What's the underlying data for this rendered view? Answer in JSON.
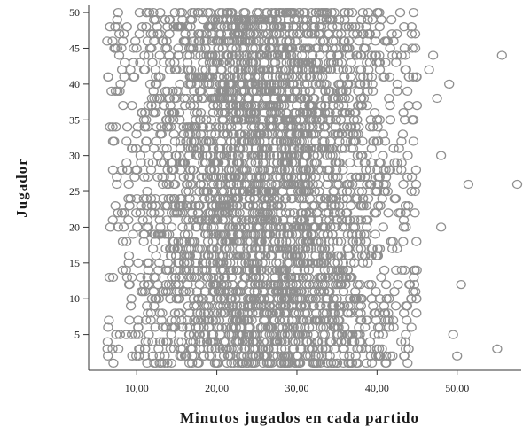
{
  "chart_data": {
    "type": "scatter",
    "title": "",
    "xlabel": "Minutos jugados en cada partido",
    "ylabel": "Jugador",
    "xlim": [
      4,
      58
    ],
    "ylim": [
      0,
      51
    ],
    "x_ticks": [
      10,
      20,
      30,
      40,
      50
    ],
    "x_tick_labels": [
      "10,00",
      "20,00",
      "30,00",
      "40,00",
      "50,00"
    ],
    "y_ticks": [
      5,
      10,
      15,
      20,
      25,
      30,
      35,
      40,
      45,
      50
    ],
    "y_tick_labels": [
      "5",
      "10",
      "15",
      "20",
      "25",
      "30",
      "35",
      "40",
      "45",
      "50"
    ],
    "grid": false,
    "legend": false,
    "marker": "open-circle",
    "marker_color": "#8f8f8f",
    "players": [
      1,
      50
    ],
    "points_per_player": 75,
    "minutes_range_typical": [
      6,
      45
    ],
    "outliers": [
      {
        "x": 55.6,
        "y": 44
      },
      {
        "x": 57.5,
        "y": 26
      },
      {
        "x": 51.4,
        "y": 26
      },
      {
        "x": 55.0,
        "y": 3
      },
      {
        "x": 50.5,
        "y": 12
      },
      {
        "x": 50.0,
        "y": 2
      },
      {
        "x": 49.0,
        "y": 40
      },
      {
        "x": 48.0,
        "y": 20
      },
      {
        "x": 47.5,
        "y": 38
      },
      {
        "x": 47.0,
        "y": 44
      },
      {
        "x": 46.5,
        "y": 42
      },
      {
        "x": 48.0,
        "y": 30
      },
      {
        "x": 49.5,
        "y": 5
      }
    ]
  }
}
